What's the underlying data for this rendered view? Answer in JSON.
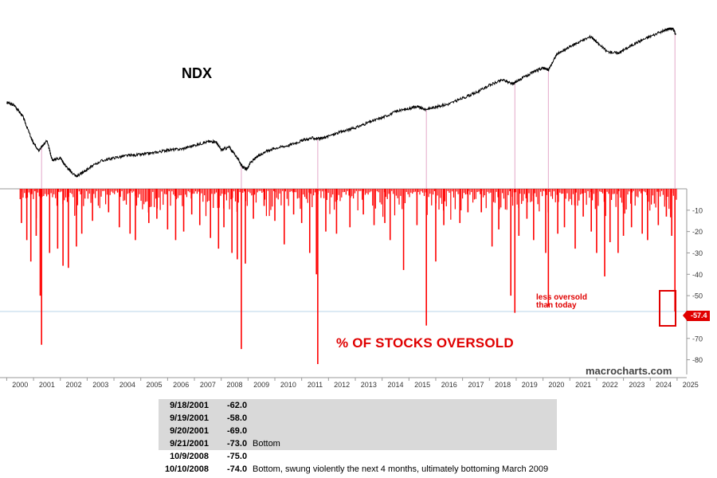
{
  "chart_data": [
    {
      "type": "line",
      "title": "NDX",
      "series": [
        {
          "x": [
            2000.0,
            2000.3,
            2000.6,
            2000.9,
            2001.0,
            2001.2,
            2001.5,
            2001.7,
            2002.0,
            2002.3,
            2002.6,
            2002.8,
            2003.0,
            2003.5,
            2004.0,
            2004.5,
            2005.0,
            2005.5,
            2006.0,
            2006.5,
            2007.0,
            2007.5,
            2007.8,
            2008.0,
            2008.3,
            2008.6,
            2008.8,
            2008.95,
            2009.1,
            2009.4,
            2009.7,
            2010.0,
            2010.5,
            2011.0,
            2011.4,
            2011.7,
            2012.0,
            2012.5,
            2013.0,
            2013.5,
            2014.0,
            2014.5,
            2015.0,
            2015.3,
            2015.6,
            2016.0,
            2016.5,
            2017.0,
            2017.5,
            2018.0,
            2018.5,
            2018.9,
            2019.0,
            2019.3,
            2019.7,
            2020.0,
            2020.2,
            2020.5,
            2020.9,
            2021.3,
            2021.8,
            2022.0,
            2022.4,
            2022.8,
            2023.0,
            2023.5,
            2024.0,
            2024.5,
            2024.7,
            2024.85,
            2024.95
          ],
          "y": [
            4.75,
            4.68,
            4.45,
            4.0,
            3.86,
            3.72,
            3.92,
            3.5,
            3.55,
            3.3,
            3.15,
            3.22,
            3.3,
            3.48,
            3.55,
            3.6,
            3.62,
            3.66,
            3.72,
            3.74,
            3.82,
            3.9,
            3.9,
            3.72,
            3.78,
            3.55,
            3.35,
            3.3,
            3.45,
            3.6,
            3.7,
            3.76,
            3.82,
            3.92,
            3.98,
            3.96,
            4.02,
            4.12,
            4.2,
            4.32,
            4.42,
            4.55,
            4.62,
            4.66,
            4.6,
            4.65,
            4.72,
            4.84,
            4.96,
            5.12,
            5.24,
            5.15,
            5.2,
            5.3,
            5.42,
            5.5,
            5.45,
            5.78,
            5.92,
            6.05,
            6.18,
            6.05,
            5.85,
            5.82,
            5.88,
            6.05,
            6.18,
            6.3,
            6.35,
            6.34,
            6.22
          ]
        }
      ],
      "xlim": [
        1999.75,
        2025.3
      ]
    },
    {
      "type": "bar",
      "title": "% OF STOCKS OVERSOLD",
      "ylim": [
        -85,
        0
      ],
      "yticks": [
        "-10",
        "-20",
        "-30",
        "-40",
        "-50",
        "-60",
        "-70",
        "-80"
      ],
      "xticks": [
        "2000",
        "2001",
        "2002",
        "2003",
        "2004",
        "2005",
        "2006",
        "2007",
        "2008",
        "2009",
        "2010",
        "2011",
        "2012",
        "2013",
        "2014",
        "2015",
        "2016",
        "2017",
        "2018",
        "2019",
        "2020",
        "2021",
        "2022",
        "2023",
        "2024",
        "2025"
      ],
      "spikes": [
        {
          "x": 2000.55,
          "y": -16
        },
        {
          "x": 2000.75,
          "y": -24
        },
        {
          "x": 2000.9,
          "y": -34
        },
        {
          "x": 2001.1,
          "y": -22
        },
        {
          "x": 2001.25,
          "y": -50
        },
        {
          "x": 2001.3,
          "y": -73
        },
        {
          "x": 2001.6,
          "y": -30
        },
        {
          "x": 2001.9,
          "y": -28
        },
        {
          "x": 2002.1,
          "y": -36
        },
        {
          "x": 2002.3,
          "y": -37
        },
        {
          "x": 2002.6,
          "y": -27
        },
        {
          "x": 2002.8,
          "y": -21
        },
        {
          "x": 2003.2,
          "y": -15
        },
        {
          "x": 2003.8,
          "y": -11
        },
        {
          "x": 2004.2,
          "y": -18
        },
        {
          "x": 2004.6,
          "y": -21
        },
        {
          "x": 2004.8,
          "y": -24
        },
        {
          "x": 2005.3,
          "y": -16
        },
        {
          "x": 2005.6,
          "y": -14
        },
        {
          "x": 2006.0,
          "y": -19
        },
        {
          "x": 2006.3,
          "y": -24
        },
        {
          "x": 2006.6,
          "y": -20
        },
        {
          "x": 2006.9,
          "y": -12
        },
        {
          "x": 2007.2,
          "y": -17
        },
        {
          "x": 2007.6,
          "y": -23
        },
        {
          "x": 2007.9,
          "y": -28
        },
        {
          "x": 2008.1,
          "y": -18
        },
        {
          "x": 2008.4,
          "y": -30
        },
        {
          "x": 2008.6,
          "y": -33
        },
        {
          "x": 2008.75,
          "y": -75
        },
        {
          "x": 2008.9,
          "y": -35
        },
        {
          "x": 2009.2,
          "y": -14
        },
        {
          "x": 2009.6,
          "y": -8
        },
        {
          "x": 2010.0,
          "y": -15
        },
        {
          "x": 2010.35,
          "y": -26
        },
        {
          "x": 2010.7,
          "y": -12
        },
        {
          "x": 2011.0,
          "y": -16
        },
        {
          "x": 2011.3,
          "y": -30
        },
        {
          "x": 2011.55,
          "y": -40
        },
        {
          "x": 2011.6,
          "y": -82
        },
        {
          "x": 2011.9,
          "y": -20
        },
        {
          "x": 2012.3,
          "y": -21
        },
        {
          "x": 2012.8,
          "y": -18
        },
        {
          "x": 2013.3,
          "y": -12
        },
        {
          "x": 2013.7,
          "y": -17
        },
        {
          "x": 2014.1,
          "y": -16
        },
        {
          "x": 2014.3,
          "y": -24
        },
        {
          "x": 2014.8,
          "y": -38
        },
        {
          "x": 2015.3,
          "y": -17
        },
        {
          "x": 2015.65,
          "y": -64
        },
        {
          "x": 2016.0,
          "y": -34
        },
        {
          "x": 2016.3,
          "y": -17
        },
        {
          "x": 2016.9,
          "y": -16
        },
        {
          "x": 2017.2,
          "y": -11
        },
        {
          "x": 2017.7,
          "y": -11
        },
        {
          "x": 2018.1,
          "y": -27
        },
        {
          "x": 2018.35,
          "y": -19
        },
        {
          "x": 2018.8,
          "y": -50
        },
        {
          "x": 2018.95,
          "y": -58
        },
        {
          "x": 2019.1,
          "y": -22
        },
        {
          "x": 2019.4,
          "y": -14
        },
        {
          "x": 2019.65,
          "y": -24
        },
        {
          "x": 2020.1,
          "y": -30
        },
        {
          "x": 2020.2,
          "y": -55
        },
        {
          "x": 2020.55,
          "y": -21
        },
        {
          "x": 2020.8,
          "y": -18
        },
        {
          "x": 2021.2,
          "y": -28
        },
        {
          "x": 2021.5,
          "y": -13
        },
        {
          "x": 2021.8,
          "y": -20
        },
        {
          "x": 2022.0,
          "y": -30
        },
        {
          "x": 2022.3,
          "y": -41
        },
        {
          "x": 2022.5,
          "y": -25
        },
        {
          "x": 2022.8,
          "y": -30
        },
        {
          "x": 2023.0,
          "y": -22
        },
        {
          "x": 2023.3,
          "y": -18
        },
        {
          "x": 2023.7,
          "y": -21
        },
        {
          "x": 2023.9,
          "y": -24
        },
        {
          "x": 2024.3,
          "y": -17
        },
        {
          "x": 2024.6,
          "y": -13
        },
        {
          "x": 2024.8,
          "y": -22
        },
        {
          "x": 2024.92,
          "y": -57.4
        }
      ],
      "reference_line": -57.4,
      "current_value": "-57.4"
    }
  ],
  "labels": {
    "ndx": "NDX",
    "oversold": "% OF STOCKS OVERSOLD",
    "annotation_line1": "less oversold",
    "annotation_line2": "than today",
    "watermark": "macrocharts.com",
    "current_badge": "-57.4"
  },
  "colors": {
    "bars": "#ff0000",
    "line": "#000000",
    "markers": "#e3a7c9",
    "reference": "#b9d6ea",
    "highlight": "#e00000"
  },
  "table": [
    {
      "date": "9/18/2001",
      "value": "-62.0",
      "note": ""
    },
    {
      "date": "9/19/2001",
      "value": "-58.0",
      "note": ""
    },
    {
      "date": "9/20/2001",
      "value": "-69.0",
      "note": ""
    },
    {
      "date": "9/21/2001",
      "value": "-73.0",
      "note": "Bottom"
    },
    {
      "date": "10/9/2008",
      "value": "-75.0",
      "note": ""
    },
    {
      "date": "10/10/2008",
      "value": "-74.0",
      "note": "Bottom, swung violently the next  4 months, ultimately bottoming March 2009"
    }
  ]
}
